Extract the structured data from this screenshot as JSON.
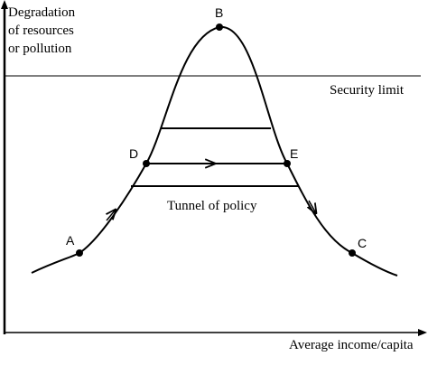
{
  "y_axis_label": [
    "Degradation",
    "of resources",
    "or pollution"
  ],
  "x_axis_label": "Average income/capita",
  "security_limit": "Security limit",
  "tunnel": "Tunnel of policy",
  "points": [
    "A",
    "B",
    "C",
    "D",
    "E"
  ]
}
